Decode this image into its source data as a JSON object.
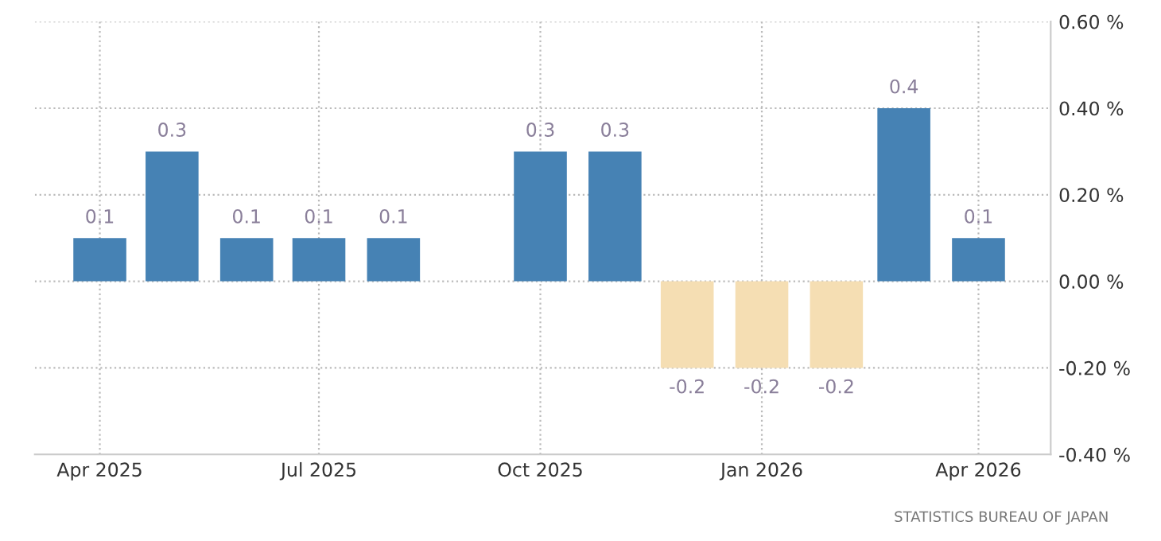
{
  "chart_data": {
    "type": "bar",
    "x": [
      "2025-04",
      "2025-05",
      "2025-06",
      "2025-07",
      "2025-08",
      "2025-09",
      "2025-10",
      "2025-11",
      "2025-12",
      "2026-01",
      "2026-02",
      "2026-03",
      "2026-04"
    ],
    "values": [
      0.1,
      0.3,
      0.1,
      0.1,
      0.1,
      null,
      0.3,
      0.3,
      -0.2,
      -0.2,
      -0.2,
      0.4,
      0.1
    ],
    "colors": [
      "#4682b4",
      "#4682b4",
      "#4682b4",
      "#4682b4",
      "#4682b4",
      "#4682b4",
      "#4682b4",
      "#4682b4",
      "#f5deb3",
      "#f5deb3",
      "#f5deb3",
      "#4682b4",
      "#4682b4"
    ],
    "data_labels": true,
    "xlim": [
      "2025-03-05",
      "2026-05-01"
    ],
    "xticks": [
      {
        "value": "2025-04",
        "label": "Apr 2025"
      },
      {
        "value": "2025-07",
        "label": "Jul 2025"
      },
      {
        "value": "2025-10",
        "label": "Oct 2025"
      },
      {
        "value": "2026-01",
        "label": "Jan 2026"
      },
      {
        "value": "2026-04",
        "label": "Apr 2026"
      }
    ],
    "ylim": [
      -0.4,
      0.6
    ],
    "yticks": [
      {
        "value": -0.4,
        "label": "-0.40 %"
      },
      {
        "value": -0.2,
        "label": "-0.20 %"
      },
      {
        "value": 0,
        "label": "0.00 %"
      },
      {
        "value": 0.2,
        "label": "0.20 %"
      },
      {
        "value": 0.4,
        "label": "0.40 %"
      },
      {
        "value": 0.6,
        "label": "0.60 %"
      }
    ],
    "grid": true,
    "annotations": [
      "STATISTICS BUREAU OF JAPAN"
    ]
  }
}
